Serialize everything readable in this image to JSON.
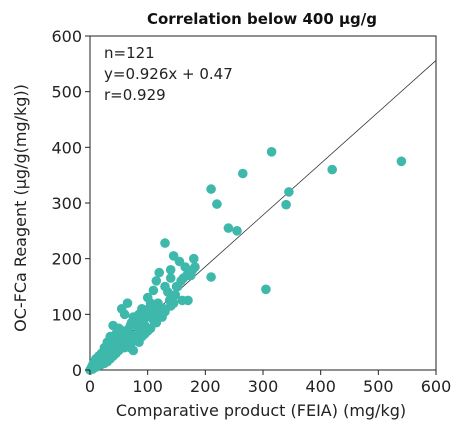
{
  "chart_data": {
    "type": "scatter",
    "title": "Correlation below 400 μg/g",
    "xlabel": "Comparative product (FEIA) (mg/kg)",
    "ylabel": "OC-FCa Reagent (μg/g(mg/kg))",
    "xlim": [
      0,
      600
    ],
    "ylim": [
      0,
      600
    ],
    "xticks": [
      "0",
      "100",
      "200",
      "300",
      "400",
      "500",
      "600"
    ],
    "yticks": [
      "0",
      "100",
      "200",
      "300",
      "400",
      "500",
      "600"
    ],
    "grid": false,
    "annotations": [
      "n=121",
      "y=0.926x + 0.47",
      "r=0.929"
    ],
    "fit_line": {
      "slope": 0.926,
      "intercept": 0.47
    },
    "point_color": "#3fb8ac",
    "points": [
      [
        540,
        375
      ],
      [
        420,
        360
      ],
      [
        345,
        320
      ],
      [
        340,
        297
      ],
      [
        315,
        392
      ],
      [
        265,
        353
      ],
      [
        210,
        325
      ],
      [
        220,
        298
      ],
      [
        240,
        255
      ],
      [
        255,
        250
      ],
      [
        305,
        145
      ],
      [
        210,
        167
      ],
      [
        180,
        200
      ],
      [
        175,
        170
      ],
      [
        170,
        125
      ],
      [
        160,
        125
      ],
      [
        165,
        185
      ],
      [
        155,
        195
      ],
      [
        140,
        180
      ],
      [
        130,
        228
      ],
      [
        145,
        205
      ],
      [
        150,
        150
      ],
      [
        140,
        165
      ],
      [
        130,
        150
      ],
      [
        120,
        175
      ],
      [
        115,
        160
      ],
      [
        110,
        143
      ],
      [
        105,
        120
      ],
      [
        100,
        130
      ],
      [
        95,
        100
      ],
      [
        90,
        110
      ],
      [
        85,
        100
      ],
      [
        80,
        90
      ],
      [
        75,
        95
      ],
      [
        70,
        80
      ],
      [
        65,
        120
      ],
      [
        60,
        100
      ],
      [
        55,
        110
      ],
      [
        50,
        75
      ],
      [
        45,
        65
      ],
      [
        40,
        80
      ],
      [
        35,
        60
      ],
      [
        30,
        50
      ],
      [
        25,
        40
      ],
      [
        20,
        30
      ],
      [
        15,
        25
      ],
      [
        10,
        20
      ],
      [
        8,
        15
      ],
      [
        5,
        10
      ],
      [
        3,
        5
      ],
      [
        2,
        2
      ],
      [
        0,
        0
      ],
      [
        12,
        8
      ],
      [
        18,
        15
      ],
      [
        22,
        20
      ],
      [
        28,
        30
      ],
      [
        32,
        35
      ],
      [
        38,
        45
      ],
      [
        42,
        50
      ],
      [
        48,
        55
      ],
      [
        52,
        60
      ],
      [
        58,
        70
      ],
      [
        62,
        65
      ],
      [
        68,
        75
      ],
      [
        72,
        85
      ],
      [
        78,
        95
      ],
      [
        82,
        80
      ],
      [
        88,
        90
      ],
      [
        92,
        85
      ],
      [
        98,
        95
      ],
      [
        102,
        110
      ],
      [
        108,
        100
      ],
      [
        112,
        115
      ],
      [
        118,
        120
      ],
      [
        122,
        105
      ],
      [
        125,
        95
      ],
      [
        128,
        110
      ],
      [
        135,
        140
      ],
      [
        138,
        125
      ],
      [
        142,
        130
      ],
      [
        148,
        135
      ],
      [
        152,
        150
      ],
      [
        158,
        160
      ],
      [
        162,
        165
      ],
      [
        168,
        170
      ],
      [
        172,
        175
      ],
      [
        178,
        180
      ],
      [
        182,
        185
      ],
      [
        100,
        70
      ],
      [
        90,
        60
      ],
      [
        80,
        55
      ],
      [
        70,
        45
      ],
      [
        60,
        40
      ],
      [
        50,
        35
      ],
      [
        40,
        25
      ],
      [
        30,
        15
      ],
      [
        20,
        10
      ],
      [
        10,
        5
      ],
      [
        5,
        2
      ],
      [
        70,
        40
      ],
      [
        75,
        35
      ],
      [
        85,
        50
      ],
      [
        95,
        65
      ],
      [
        105,
        75
      ],
      [
        115,
        85
      ],
      [
        120,
        95
      ],
      [
        55,
        45
      ],
      [
        45,
        30
      ],
      [
        35,
        20
      ],
      [
        25,
        12
      ],
      [
        15,
        8
      ],
      [
        65,
        55
      ],
      [
        75,
        60
      ],
      [
        85,
        70
      ],
      [
        95,
        80
      ],
      [
        110,
        90
      ],
      [
        125,
        100
      ],
      [
        130,
        105
      ],
      [
        140,
        115
      ],
      [
        145,
        120
      ],
      [
        60,
        45
      ]
    ]
  }
}
